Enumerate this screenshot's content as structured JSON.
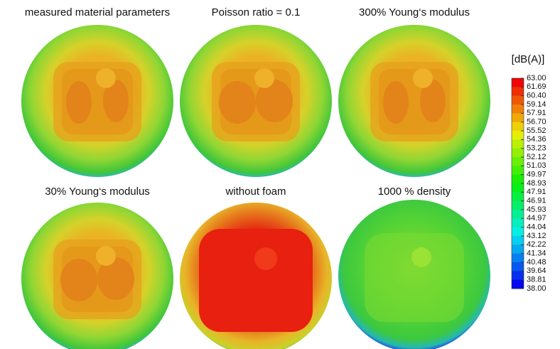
{
  "panels": [
    {
      "title": "measured material parameters"
    },
    {
      "title": "Poisson ratio = 0.1"
    },
    {
      "title": "300% Young‘s modulus"
    },
    {
      "title": "30% Young‘s modulus"
    },
    {
      "title": "without foam"
    },
    {
      "title": "1000 % density"
    }
  ],
  "colorbar": {
    "title": "[dB(A)]",
    "labels": [
      "63.00",
      "61.69",
      "60.40",
      "59.14",
      "57.91",
      "56.70",
      "55.52",
      "54.36",
      "53.23",
      "52.12",
      "51.03",
      "49.97",
      "48.93",
      "47.91",
      "46.91",
      "45.93",
      "44.97",
      "44.04",
      "43.12",
      "42.22",
      "41.34",
      "40.48",
      "39.64",
      "38.81",
      "38.00"
    ]
  }
}
